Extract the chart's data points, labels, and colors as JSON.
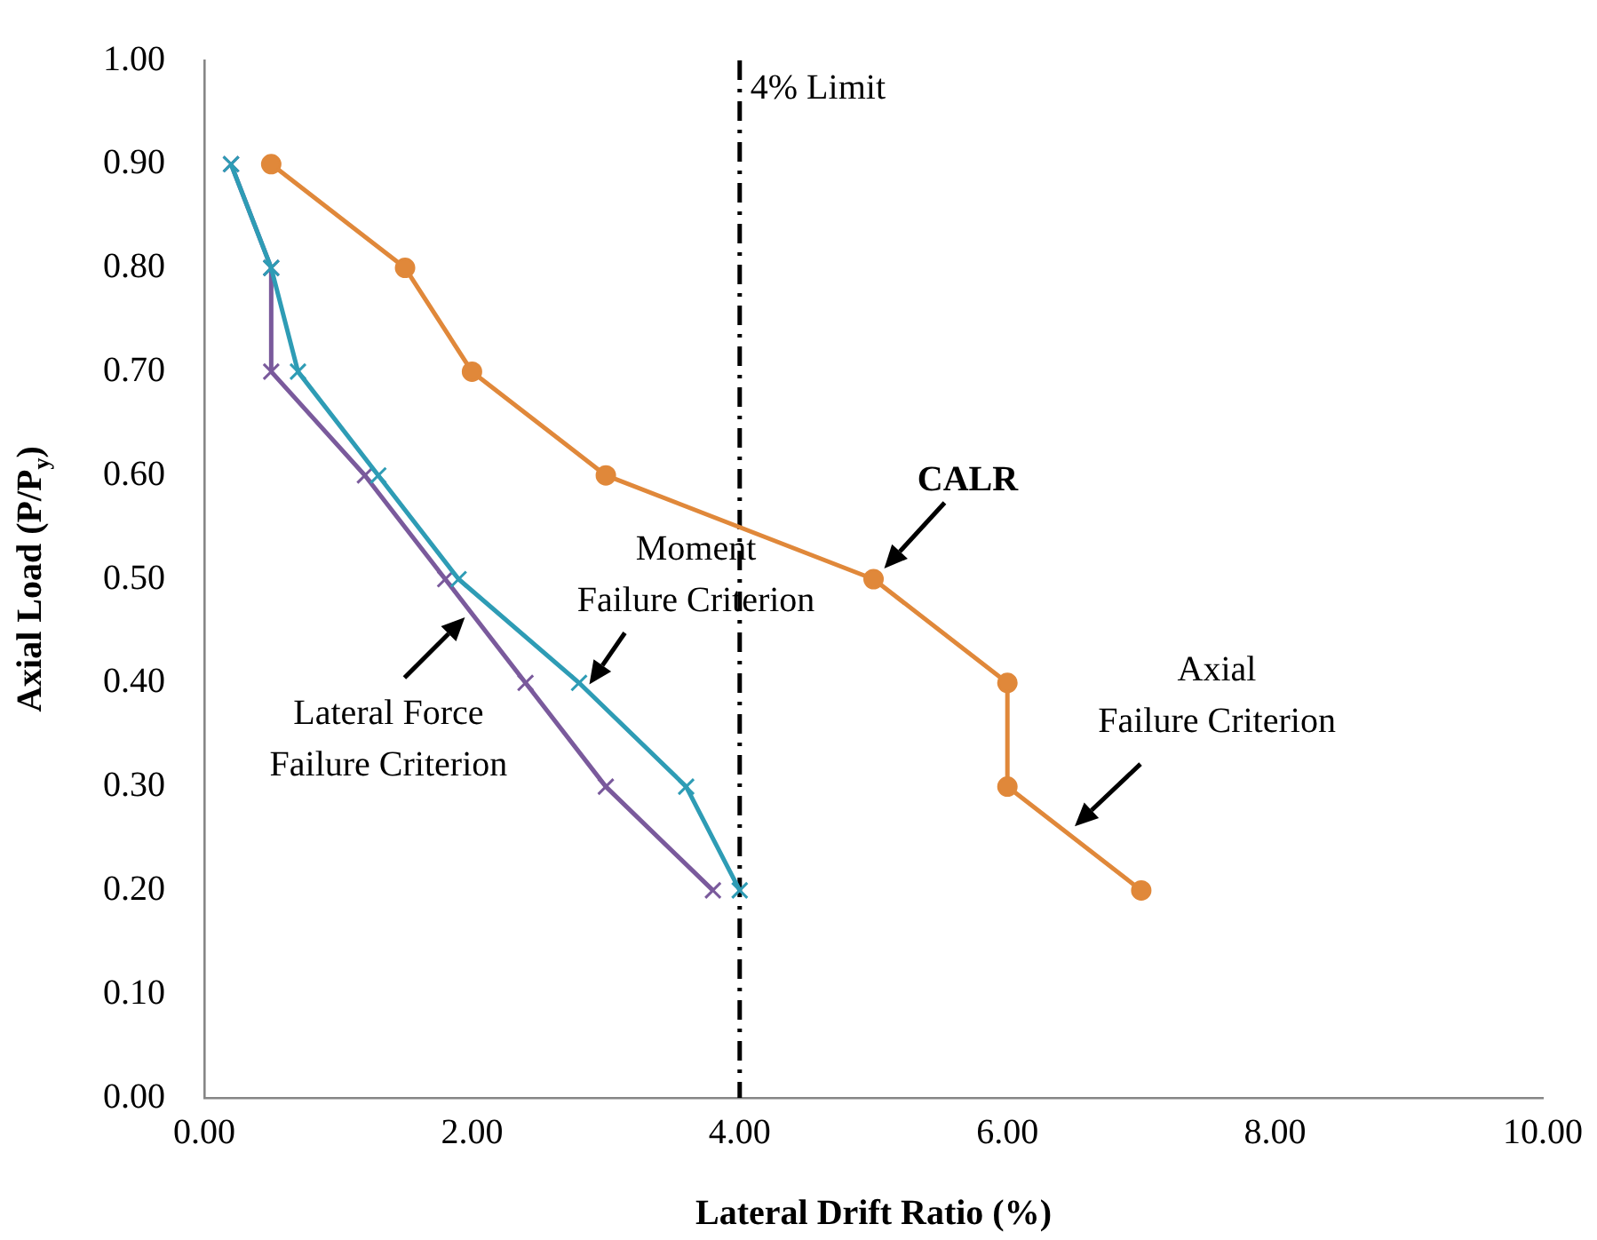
{
  "chart_data": {
    "type": "line",
    "xlabel": "Lateral Drift Ratio (%)",
    "ylabel": "Axial Load (P/P$_{y}$)",
    "xlim": [
      0,
      10
    ],
    "xticks": [
      {
        "value": 0,
        "label": "0.00"
      },
      {
        "value": 2,
        "label": "2.00"
      },
      {
        "value": 4,
        "label": "4.00"
      },
      {
        "value": 6,
        "label": "6.00"
      },
      {
        "value": 8,
        "label": "8.00"
      },
      {
        "value": 10,
        "label": "10.00"
      }
    ],
    "ylim": [
      0,
      1
    ],
    "yticks": [
      {
        "value": 0,
        "label": "0.00"
      },
      {
        "value": 0.1,
        "label": "0.10"
      },
      {
        "value": 0.2,
        "label": "0.20"
      },
      {
        "value": 0.3,
        "label": "0.30"
      },
      {
        "value": 0.4,
        "label": "0.40"
      },
      {
        "value": 0.5,
        "label": "0.50"
      },
      {
        "value": 0.6,
        "label": "0.60"
      },
      {
        "value": 0.7,
        "label": "0.70"
      },
      {
        "value": 0.8,
        "label": "0.80"
      },
      {
        "value": 0.9,
        "label": "0.90"
      },
      {
        "value": 1,
        "label": "1.00"
      }
    ],
    "grid": false,
    "legend": false,
    "series": [
      {
        "color": "#e0883a",
        "marker": "circle",
        "x": [
          0.5,
          1.5,
          2,
          3,
          5,
          6,
          6,
          7
        ],
        "values": [
          0.9,
          0.8,
          0.7,
          0.6,
          0.5,
          0.4,
          0.3,
          0.2
        ]
      },
      {
        "color": "#7a5a9c",
        "marker": "cross",
        "x": [
          0.2,
          0.5,
          0.5,
          1.2,
          1.8,
          2.4,
          3,
          3.8
        ],
        "values": [
          0.9,
          0.8,
          0.7,
          0.6,
          0.5,
          0.4,
          0.3,
          0.2
        ]
      },
      {
        "color": "#2e9cb5",
        "marker": "cross",
        "x": [
          0.2,
          0.5,
          0.7,
          1.3,
          1.9,
          2.8,
          3.6,
          4
        ],
        "values": [
          0.9,
          0.8,
          0.7,
          0.6,
          0.5,
          0.4,
          0.3,
          0.2
        ]
      }
    ],
    "ref_lines": [
      {
        "axis": "x",
        "value": 4,
        "label": "4% Limit",
        "color": "#000000",
        "line_style": "dashed"
      }
    ],
    "annotations": [
      {
        "text": "CALR",
        "x": 5,
        "y": 0.5
      },
      {
        "text": "Moment\nFailure Criterion",
        "x": 2.85,
        "y": 0.39
      },
      {
        "text": "Lateral Force\nFailure Criterion",
        "x": 2,
        "y": 0.47
      },
      {
        "text": "Axial\nFailure Criterion",
        "x": 6.45,
        "y": 0.255
      }
    ]
  }
}
